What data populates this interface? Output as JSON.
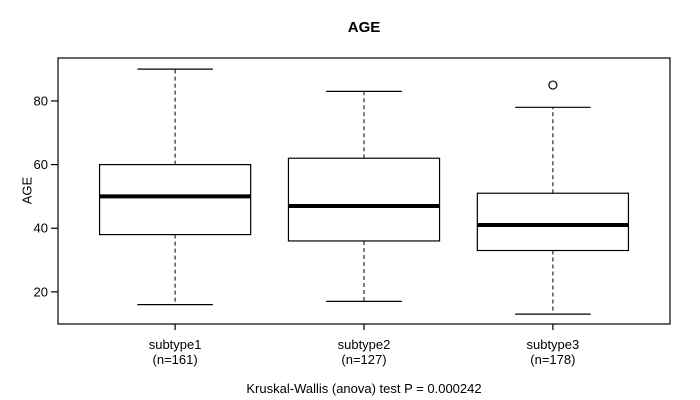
{
  "title": "AGE",
  "y_axis": {
    "label": "AGE"
  },
  "footer": "Kruskal-Wallis (anova) test P = 0.000242",
  "colors": {
    "line": "#000000",
    "background": "#ffffff",
    "box_fill": "#ffffff"
  },
  "chart_data": {
    "type": "boxplot",
    "title": "AGE",
    "xlabel": "",
    "ylabel": "AGE",
    "ylim": [
      9.9,
      93.5
    ],
    "yticks": [
      20,
      40,
      60,
      80
    ],
    "grid": false,
    "legend": "none",
    "annotation": "Kruskal-Wallis (anova) test P = 0.000242",
    "groups": [
      {
        "label": "subtype1",
        "n_label": "(n=161)",
        "n": 161,
        "whisker_low": 16,
        "q1": 38,
        "median": 50,
        "q3": 60,
        "whisker_high": 90,
        "outliers": []
      },
      {
        "label": "subtype2",
        "n_label": "(n=127)",
        "n": 127,
        "whisker_low": 17,
        "q1": 36,
        "median": 47,
        "q3": 62,
        "whisker_high": 83,
        "outliers": []
      },
      {
        "label": "subtype3",
        "n_label": "(n=178)",
        "n": 178,
        "whisker_low": 13,
        "q1": 33,
        "median": 41,
        "q3": 51,
        "whisker_high": 78,
        "outliers": [
          85
        ]
      }
    ]
  }
}
